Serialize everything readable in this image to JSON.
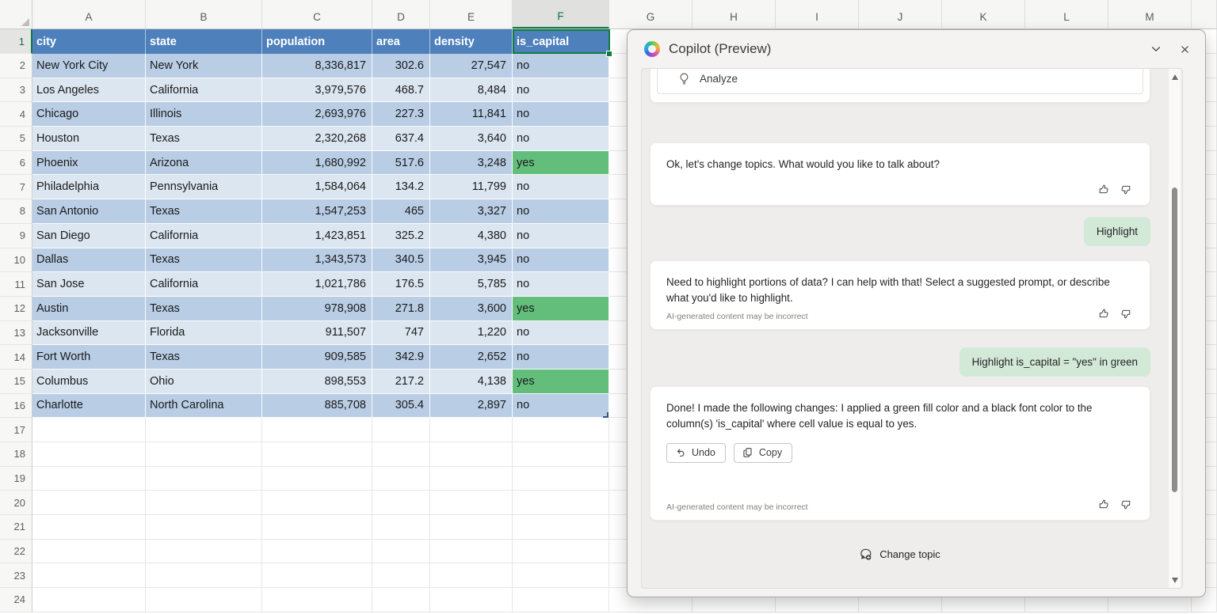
{
  "spreadsheet": {
    "column_letters": [
      "A",
      "B",
      "C",
      "D",
      "E",
      "F",
      "G",
      "H",
      "I",
      "J",
      "K",
      "L",
      "M"
    ],
    "selected_column": "F",
    "selected_row": "1",
    "total_rows": 24,
    "headers": [
      "city",
      "state",
      "population",
      "area",
      "density",
      "is_capital"
    ],
    "rows": [
      [
        "New York City",
        "New York",
        "8,336,817",
        "302.6",
        "27,547",
        "no"
      ],
      [
        "Los Angeles",
        "California",
        "3,979,576",
        "468.7",
        "8,484",
        "no"
      ],
      [
        "Chicago",
        "Illinois",
        "2,693,976",
        "227.3",
        "11,841",
        "no"
      ],
      [
        "Houston",
        "Texas",
        "2,320,268",
        "637.4",
        "3,640",
        "no"
      ],
      [
        "Phoenix",
        "Arizona",
        "1,680,992",
        "517.6",
        "3,248",
        "yes"
      ],
      [
        "Philadelphia",
        "Pennsylvania",
        "1,584,064",
        "134.2",
        "11,799",
        "no"
      ],
      [
        "San Antonio",
        "Texas",
        "1,547,253",
        "465",
        "3,327",
        "no"
      ],
      [
        "San Diego",
        "California",
        "1,423,851",
        "325.2",
        "4,380",
        "no"
      ],
      [
        "Dallas",
        "Texas",
        "1,343,573",
        "340.5",
        "3,945",
        "no"
      ],
      [
        "San Jose",
        "California",
        "1,021,786",
        "176.5",
        "5,785",
        "no"
      ],
      [
        "Austin",
        "Texas",
        "978,908",
        "271.8",
        "3,600",
        "yes"
      ],
      [
        "Jacksonville",
        "Florida",
        "911,507",
        "747",
        "1,220",
        "no"
      ],
      [
        "Fort Worth",
        "Texas",
        "909,585",
        "342.9",
        "2,652",
        "no"
      ],
      [
        "Columbus",
        "Ohio",
        "898,553",
        "217.2",
        "4,138",
        "yes"
      ],
      [
        "Charlotte",
        "North Carolina",
        "885,708",
        "305.4",
        "2,897",
        "no"
      ]
    ],
    "colors": {
      "header_fill": "#4E80BC",
      "band_dark": "#B9CDE5",
      "band_light": "#DCE6F1",
      "highlight_green": "#63BE7B",
      "selection_green": "#107C41"
    }
  },
  "copilot": {
    "title": "Copilot (Preview)",
    "suggestion_label": "Analyze",
    "disclaimer": "AI-generated content may be incorrect",
    "undo_label": "Undo",
    "copy_label": "Copy",
    "change_topic_label": "Change topic",
    "messages": [
      {
        "role": "assistant",
        "text": "Ok, let's change topics. What would you like to talk about?",
        "disclaimer": false,
        "actions": false
      },
      {
        "role": "user",
        "text": "Highlight"
      },
      {
        "role": "assistant",
        "text": "Need to highlight portions of data? I can help with that! Select a suggested prompt, or describe what you'd like to highlight.",
        "disclaimer": true,
        "actions": false
      },
      {
        "role": "user",
        "text": "Highlight is_capital = \"yes\" in green"
      },
      {
        "role": "assistant",
        "text": "Done! I made the following changes: I applied a green fill color and a black font color to the column(s) 'is_capital' where cell value is equal to yes.",
        "disclaimer": true,
        "actions": true
      }
    ]
  }
}
